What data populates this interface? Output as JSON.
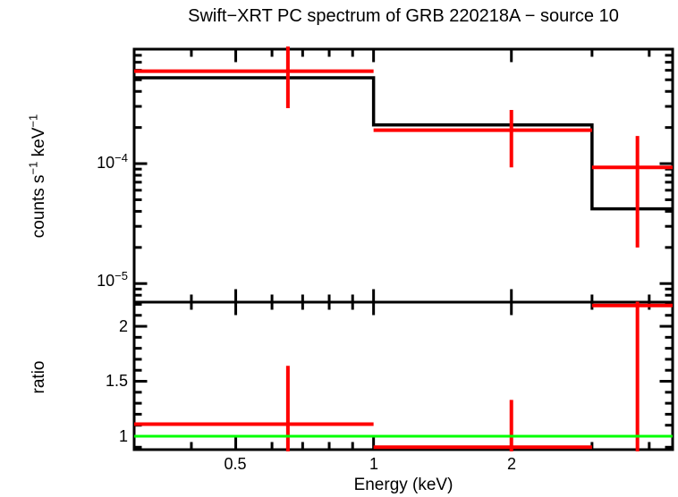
{
  "title": "Swift−XRT PC spectrum of GRB 220218A − source 10",
  "colors": {
    "background": "#ffffff",
    "frame": "#000000",
    "model": "#000000",
    "data": "#ff0000",
    "reference": "#00ff00"
  },
  "axis_labels": {
    "x": "Energy (keV)",
    "y_spectrum": {
      "t1": "counts s",
      "s1": "−1",
      "t2": " keV",
      "s2": "−1"
    },
    "y_ratio": "ratio"
  },
  "tick_labels": {
    "x": [
      "0.5",
      "1",
      "2"
    ],
    "y_spectrum": [
      {
        "base": "10",
        "exp": "−4"
      },
      {
        "base": "10",
        "exp": "−5"
      }
    ],
    "y_ratio": [
      "2",
      "1.5",
      "1"
    ]
  },
  "chart_data": [
    {
      "type": "line",
      "name": "spectrum",
      "description": "Stepped spectral model (black) with binned data points and asymmetric error bars (red); log-log axes",
      "xscale": "log",
      "yscale": "log",
      "xlim": [
        0.3,
        4.5
      ],
      "ylim": [
        7e-06,
        0.0009
      ],
      "xlabel": "Energy (keV)",
      "ylabel": "counts s−1 keV−1",
      "xticks_major": [
        0.5,
        1,
        2
      ],
      "xticks_minor": [
        0.4,
        0.6,
        0.7,
        0.8,
        0.9,
        3,
        4
      ],
      "yticks_major": [
        0.0001,
        1e-05
      ],
      "model_steps": [
        {
          "e_min": 0.3,
          "e_max": 1.0,
          "value": 0.00052
        },
        {
          "e_min": 1.0,
          "e_max": 3.0,
          "value": 0.00021
        },
        {
          "e_min": 3.0,
          "e_max": 4.5,
          "value": 4.2e-05
        }
      ],
      "data_points": [
        {
          "e_min": 0.3,
          "e_max": 1.0,
          "e_center": 0.65,
          "value": 0.00059,
          "err_hi": 0.00095,
          "err_lo": 0.00029
        },
        {
          "e_min": 1.0,
          "e_max": 3.0,
          "e_center": 2.0,
          "value": 0.00019,
          "err_hi": 0.00028,
          "err_lo": 9.3e-05
        },
        {
          "e_min": 3.0,
          "e_max": 4.5,
          "e_center": 3.77,
          "value": 9.3e-05,
          "err_hi": 0.00017,
          "err_lo": 2e-05
        }
      ]
    },
    {
      "type": "scatter",
      "name": "ratio",
      "description": "Data/model ratio with error bars (red) and unity reference line (green); linear y axis, log x axis",
      "xscale": "log",
      "yscale": "linear",
      "xlim": [
        0.3,
        4.5
      ],
      "ylim": [
        0.878,
        2.22
      ],
      "xlabel": "Energy (keV)",
      "ylabel": "ratio",
      "xticks_major": [
        0.5,
        1,
        2
      ],
      "xticks_minor": [
        0.4,
        0.6,
        0.7,
        0.8,
        0.9,
        3,
        4
      ],
      "yticks_major": [
        1,
        1.5,
        2
      ],
      "yticks_minor": [
        0.9,
        1.1,
        1.2,
        1.3,
        1.4,
        1.6,
        1.7,
        1.8,
        1.9,
        2.1,
        2.2
      ],
      "reference_line": {
        "value": 1.0,
        "color": "#00ff00"
      },
      "data_points": [
        {
          "e_min": 0.3,
          "e_max": 1.0,
          "e_center": 0.65,
          "value": 1.11,
          "err_hi": 1.64,
          "err_lo": 0.75
        },
        {
          "e_min": 1.0,
          "e_max": 3.0,
          "e_center": 2.0,
          "value": 0.9,
          "err_hi": 1.33,
          "err_lo": 0.7
        },
        {
          "e_min": 3.0,
          "e_max": 4.5,
          "e_center": 3.77,
          "value": 2.19,
          "err_hi": 2.35,
          "err_lo": 0.55
        }
      ]
    }
  ]
}
